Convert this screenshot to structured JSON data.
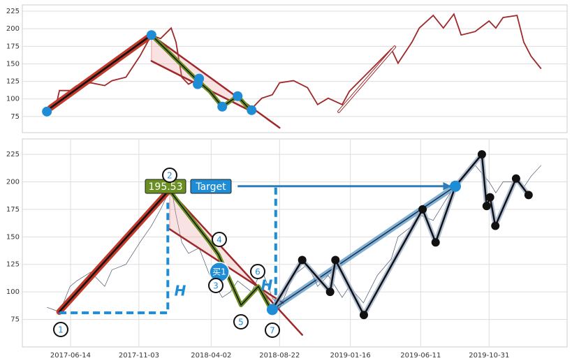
{
  "chart_data": [
    {
      "type": "line",
      "xlim": [
        "2017-03-06",
        "2020-04-10"
      ],
      "ylim": [
        52,
        234
      ],
      "yticks": [
        75,
        100,
        125,
        150,
        175,
        200,
        225
      ],
      "grid": true,
      "x": [
        "2017-04-26",
        "2017-05-15",
        "2017-05-22",
        "2017-06-13",
        "2017-06-27",
        "2017-07-26",
        "2017-08-24",
        "2017-09-08",
        "2017-10-07",
        "2017-11-05",
        "2017-11-29",
        "2017-12-18",
        "2018-01-09",
        "2018-01-19",
        "2018-01-31",
        "2018-02-14",
        "2018-03-08",
        "2018-03-30",
        "2018-04-25",
        "2018-05-12",
        "2018-05-27",
        "2018-06-25",
        "2018-07-16",
        "2018-08-07",
        "2018-08-22",
        "2018-09-20",
        "2018-10-19",
        "2018-11-09",
        "2018-12-01",
        "2018-12-30",
        "2019-01-14",
        "2019-02-12",
        "2019-03-13",
        "2019-04-11",
        "2019-04-25",
        "2019-05-24",
        "2019-06-08",
        "2019-07-07",
        "2019-07-28",
        "2019-08-19",
        "2019-09-03",
        "2019-10-02",
        "2019-10-31",
        "2019-11-14",
        "2019-11-29",
        "2019-12-28",
        "2020-01-11",
        "2020-01-26",
        "2020-02-16"
      ],
      "series": [
        {
          "color": "#a0282a",
          "values": [
            82,
            91,
            112,
            112,
            119,
            123,
            119,
            126,
            131,
            161,
            191,
            186,
            201,
            181,
            131,
            121,
            129,
            111,
            92,
            96,
            104,
            86,
            101,
            106,
            123,
            126,
            116,
            92,
            101,
            92,
            111,
            131,
            151,
            171,
            151,
            181,
            201,
            219,
            201,
            221,
            191,
            196,
            211,
            201,
            216,
            219,
            181,
            161,
            143
          ]
        }
      ],
      "overlays": [
        {
          "style": "fill",
          "color": "#e8a0a0",
          "x": [
            "2017-11-29",
            "2018-06-25",
            "2018-06-25",
            "2017-11-29"
          ],
          "values": [
            191,
            88,
            82,
            154
          ]
        },
        {
          "style": "thick",
          "color": "#c0392b",
          "x": [
            "2017-05-03",
            "2017-11-29"
          ],
          "values": [
            87,
            191
          ]
        },
        {
          "style": "thin",
          "color": "#a0282a",
          "x": [
            "2017-11-29",
            "2018-08-22"
          ],
          "values": [
            191,
            59
          ]
        },
        {
          "style": "thin",
          "color": "#a0282a",
          "x": [
            "2017-11-29",
            "2018-06-25"
          ],
          "values": [
            154,
            82
          ]
        },
        {
          "style": "zigzag",
          "color": "#6b8e23",
          "x": [
            "2017-11-29",
            "2018-03-08",
            "2018-03-30",
            "2018-04-25",
            "2018-05-27",
            "2018-06-25"
          ],
          "values": [
            191,
            124,
            111,
            89,
            104,
            82
          ]
        },
        {
          "style": "dots",
          "color": "#1f8dd6",
          "x": [
            "2017-04-26",
            "2017-11-29",
            "2018-03-08",
            "2018-03-05",
            "2018-04-25",
            "2018-05-27",
            "2018-06-25"
          ],
          "values": [
            82,
            191,
            129,
            121,
            89,
            104,
            84
          ]
        },
        {
          "style": "channel",
          "color": "#a0282a",
          "x": [
            "2018-12-23",
            "2019-04-18"
          ],
          "values": [
            82,
            174
          ]
        }
      ]
    },
    {
      "type": "line",
      "xlim": [
        "2017-03-06",
        "2020-04-10"
      ],
      "ylim": [
        50,
        239
      ],
      "xticks": [
        "2017-06-14",
        "2017-11-03",
        "2018-04-02",
        "2018-08-22",
        "2019-01-16",
        "2019-06-11",
        "2019-10-31"
      ],
      "yticks": [
        75,
        100,
        125,
        150,
        175,
        200,
        225
      ],
      "grid": true,
      "x": [
        "2017-04-26",
        "2017-05-15",
        "2017-05-22",
        "2017-06-13",
        "2017-06-27",
        "2017-07-26",
        "2017-08-24",
        "2017-09-08",
        "2017-10-07",
        "2017-11-05",
        "2017-11-29",
        "2017-12-18",
        "2018-01-09",
        "2018-01-19",
        "2018-01-31",
        "2018-02-14",
        "2018-03-08",
        "2018-03-30",
        "2018-04-25",
        "2018-05-12",
        "2018-05-27",
        "2018-06-25",
        "2018-07-16",
        "2018-08-07",
        "2018-08-22",
        "2018-09-20",
        "2018-10-19",
        "2018-11-09",
        "2018-12-01",
        "2018-12-30",
        "2019-01-14",
        "2019-02-12",
        "2019-03-13",
        "2019-04-11",
        "2019-04-25",
        "2019-05-24",
        "2019-06-08",
        "2019-07-07",
        "2019-07-28",
        "2019-08-19",
        "2019-09-03",
        "2019-10-02",
        "2019-10-31",
        "2019-11-14",
        "2019-11-29",
        "2019-12-28",
        "2020-01-11",
        "2020-01-26",
        "2020-02-16"
      ],
      "series": [
        {
          "color": "#4a5570",
          "values": [
            86,
            83,
            81,
            105,
            110,
            118,
            105,
            120,
            125,
            145,
            160,
            175,
            195,
            170,
            145,
            135,
            140,
            115,
            95,
            100,
            110,
            100,
            120,
            95,
            85,
            115,
            125,
            105,
            115,
            95,
            105,
            90,
            115,
            130,
            150,
            160,
            170,
            165,
            180,
            195,
            200,
            215,
            200,
            190,
            200,
            200,
            195,
            205,
            215
          ]
        }
      ],
      "overlays": [
        {
          "style": "fill",
          "color": "#e8a0a0",
          "x": [
            "2018-01-06",
            "2018-08-07",
            "2018-08-07",
            "2018-01-06"
          ],
          "values": [
            192,
            91,
            96,
            157
          ]
        },
        {
          "style": "thick",
          "color": "#c0392b",
          "x": [
            "2017-05-22",
            "2018-01-06"
          ],
          "values": [
            82,
            193
          ]
        },
        {
          "style": "thin",
          "color": "#a0282a",
          "x": [
            "2018-01-06",
            "2018-10-08"
          ],
          "values": [
            192,
            61
          ]
        },
        {
          "style": "thin",
          "color": "#a0282a",
          "x": [
            "2018-01-06",
            "2018-08-29"
          ],
          "values": [
            157,
            90
          ]
        },
        {
          "style": "zigzag",
          "color": "#6b8e23",
          "x": [
            "2018-01-06",
            "2018-03-30",
            "2018-04-17",
            "2018-06-03",
            "2018-07-09",
            "2018-08-07"
          ],
          "values": [
            192,
            145,
            134,
            88,
            105,
            82
          ]
        },
        {
          "style": "dashed",
          "color": "#1f8dd6",
          "x": [
            "2017-05-22",
            "2018-01-02",
            "2018-01-02"
          ],
          "values": [
            81,
            81,
            181
          ]
        },
        {
          "style": "dashed",
          "color": "#1f8dd6",
          "x": [
            "2018-08-14",
            "2018-08-14"
          ],
          "values": [
            87,
            197
          ]
        },
        {
          "style": "arrow",
          "color": "#2e7db8",
          "x": [
            "2018-05-27",
            "2019-08-12"
          ],
          "values": [
            196,
            196
          ]
        },
        {
          "style": "band",
          "color": "#2e7db8",
          "x": [
            "2018-08-07",
            "2019-08-22"
          ],
          "values": [
            84,
            196
          ]
        },
        {
          "style": "black-zigzag",
          "color": "#111111",
          "x": [
            "2018-08-07",
            "2018-10-08",
            "2018-12-05",
            "2018-12-16",
            "2019-02-13",
            "2019-06-15",
            "2019-07-12",
            "2019-08-22",
            "2019-10-16",
            "2019-10-26",
            "2019-11-02",
            "2019-11-13",
            "2019-12-26",
            "2020-01-21"
          ],
          "values": [
            84,
            129,
            100,
            129,
            79,
            175,
            145,
            196,
            225,
            178,
            186,
            160,
            203,
            188
          ]
        },
        {
          "style": "dots",
          "color": "#1f8dd6",
          "x": [
            "2018-08-07",
            "2019-08-22"
          ],
          "values": [
            84,
            196
          ]
        },
        {
          "style": "big-dot",
          "color": "#1f8dd6",
          "x": [
            "2018-04-19"
          ],
          "values": [
            118
          ]
        }
      ],
      "labels": [
        {
          "style": "box",
          "color": "#6b8e23",
          "text": "195.53"
        },
        {
          "style": "box",
          "color": "#1f8dd6",
          "text": "Target"
        },
        {
          "style": "plain",
          "color": "#ffffff",
          "text": "买1"
        },
        {
          "style": "circle",
          "color": "#1f8dd6",
          "text": "1"
        },
        {
          "style": "circle",
          "color": "#1f8dd6",
          "text": "2"
        },
        {
          "style": "circle",
          "color": "#1f8dd6",
          "text": "3"
        },
        {
          "style": "circle",
          "color": "#1f8dd6",
          "text": "4"
        },
        {
          "style": "circle",
          "color": "#1f8dd6",
          "text": "5"
        },
        {
          "style": "circle",
          "color": "#1f8dd6",
          "text": "6"
        },
        {
          "style": "circle",
          "color": "#1f8dd6",
          "text": "7"
        },
        {
          "style": "h",
          "color": "#1f8dd6",
          "text": "H"
        },
        {
          "style": "h",
          "color": "#1f8dd6",
          "text": "H"
        }
      ]
    }
  ]
}
